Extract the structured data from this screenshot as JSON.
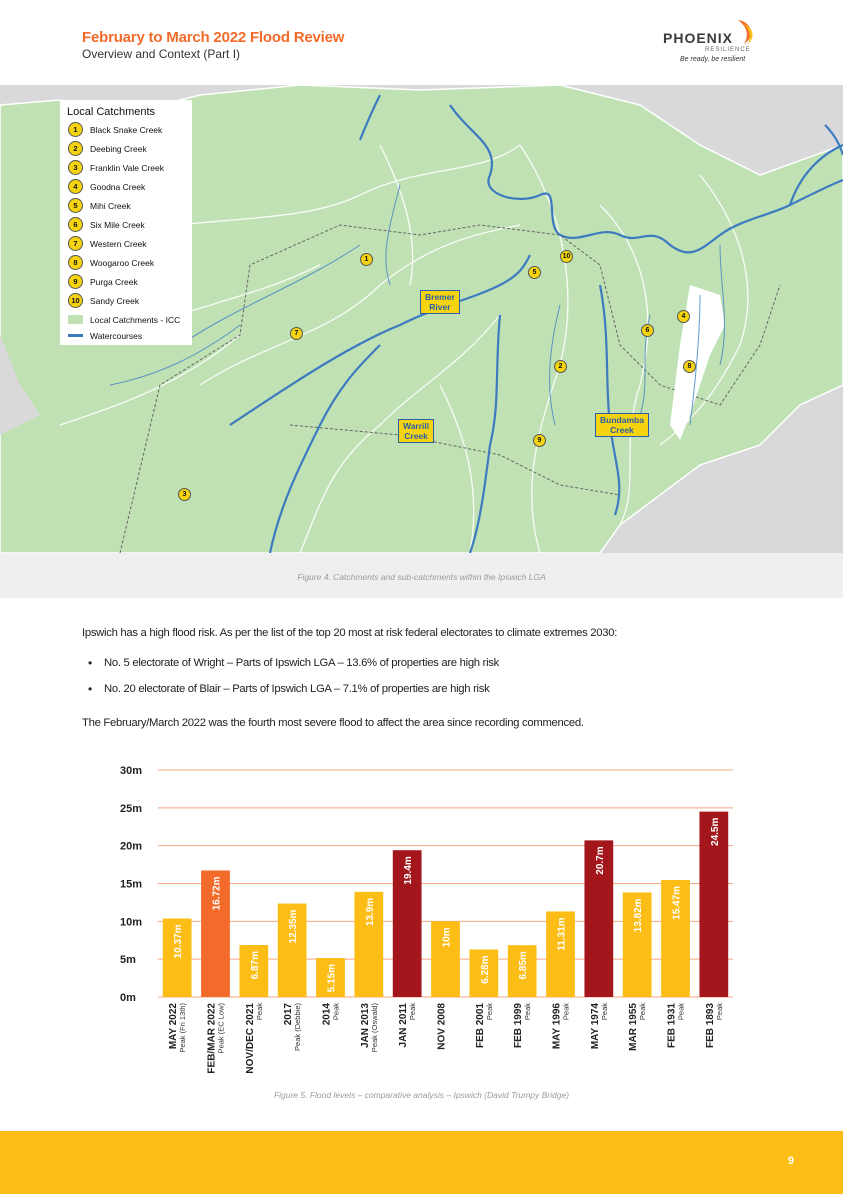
{
  "header": {
    "title": "February to March 2022 Flood Review",
    "subtitle": "Overview and Context (Part I)",
    "logo": {
      "name": "PHOENIX",
      "tagline": "RESILIENCE",
      "slogan": "Be ready, be resilient"
    }
  },
  "map": {
    "legend": {
      "title": "Local Catchments",
      "items": [
        {
          "num": "1",
          "label": "Black Snake Creek"
        },
        {
          "num": "2",
          "label": "Deebing Creek"
        },
        {
          "num": "3",
          "label": "Franklin Vale Creek"
        },
        {
          "num": "4",
          "label": "Goodna Creek"
        },
        {
          "num": "5",
          "label": "Mihi Creek"
        },
        {
          "num": "6",
          "label": "Six Mile Creek"
        },
        {
          "num": "7",
          "label": "Western Creek"
        },
        {
          "num": "8",
          "label": "Woogaroo Creek"
        },
        {
          "num": "9",
          "label": "Purga Creek"
        },
        {
          "num": "10",
          "label": "Sandy Creek"
        }
      ],
      "catchments_label": "Local Catchments - ICC",
      "watercourses_label": "Watercourses"
    },
    "labels": {
      "bremer_1": "Bremer",
      "bremer_2": "River",
      "warrill_1": "Warrill",
      "warrill_2": "Creek",
      "bundamba_1": "Bundamba",
      "bundamba_2": "Creek"
    },
    "colors": {
      "catchment": "#bfe1b3",
      "water": "#3d7bc0",
      "background": "#d9d9db",
      "marker": "#f5d30f"
    }
  },
  "figure4_caption": "Figure 4. Catchments and sub-catchments within the Ipswich LGA",
  "body": {
    "intro": "Ipswich has a high flood risk. As per the list of the top 20 most at risk federal electorates to climate extremes 2030:",
    "bullets": [
      "No. 5 electorate of Wright – Parts of Ipswich LGA – 13.6% of properties are high risk",
      "No. 20 electorate of Blair – Parts of Ipswich LGA – 7.1% of properties are high risk"
    ],
    "statement": "The February/March 2022 was the fourth most severe flood to affect the area since recording commenced."
  },
  "chart_data": {
    "type": "bar",
    "title": "",
    "xlabel": "",
    "ylabel": "",
    "ylim": [
      0,
      30
    ],
    "yticks": [
      "0m",
      "5m",
      "10m",
      "15m",
      "20m",
      "25m",
      "30m"
    ],
    "grid": true,
    "categories": [
      "MAY 2022",
      "FEB/MAR 2022",
      "NOV/DEC 2021",
      "2017",
      "2014",
      "JAN 2013",
      "JAN 2011",
      "NOV 2008",
      "FEB 2001",
      "FEB 1999",
      "MAY 1996",
      "MAY 1974",
      "MAR 1955",
      "FEB 1931",
      "FEB 1893"
    ],
    "subcategories": [
      "Peak (Fri 13th)",
      "Peak (EC Low)",
      "Peak",
      "Peak (Debbie)",
      "Peak",
      "Peak (Oswald)",
      "Peak",
      "",
      "Peak",
      "Peak",
      "Peak",
      "Peak",
      "Peak",
      "Peak",
      "Peak"
    ],
    "values": [
      10.37,
      16.72,
      6.87,
      12.35,
      5.15,
      13.9,
      19.4,
      10,
      6.28,
      6.85,
      11.31,
      20.7,
      13.82,
      15.47,
      24.5
    ],
    "value_labels": [
      "10.37m",
      "16.72m",
      "6.87m",
      "12.35m",
      "5.15m",
      "13.9m",
      "19.4m",
      "10m",
      "6.28m",
      "6.85m",
      "11.31m",
      "20.7m",
      "13.82m",
      "15.47m",
      "24.5m"
    ],
    "bar_colors": [
      "#fcbd16",
      "#f26b2a",
      "#fcbd16",
      "#fcbd16",
      "#fcbd16",
      "#fcbd16",
      "#a3161b",
      "#fcbd16",
      "#fcbd16",
      "#fcbd16",
      "#fcbd16",
      "#a3161b",
      "#fcbd16",
      "#fcbd16",
      "#a3161b"
    ],
    "gridline_color": "#f4a582"
  },
  "figure5_caption": "Figure 5. Flood levels – comparative analysis – Ipswich (David Trumpy Bridge)",
  "footer": {
    "page_number": "9"
  }
}
